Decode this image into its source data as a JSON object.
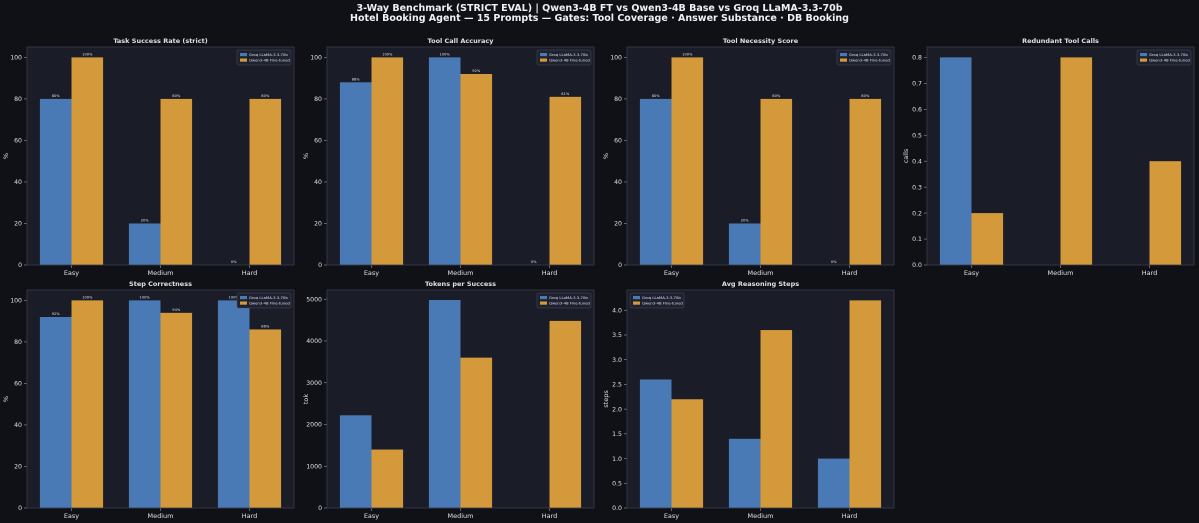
{
  "suptitle": {
    "line1": "3-Way Benchmark (STRICT EVAL)  |  Qwen3-4B FT  vs  Qwen3-4B Base  vs  Groq LLaMA-3.3-70b",
    "line2": "Hotel Booking Agent — 15 Prompts — Gates: Tool Coverage · Answer Substance · DB Booking"
  },
  "colors": {
    "figure_bg": "#0f1117",
    "panel_bg": "#1a1c27",
    "groq": "#4a7ab5",
    "qwen_ft": "#d4993a",
    "text": "#e0e0e6",
    "axis": "#3a3d4d"
  },
  "chart_data": [
    {
      "type": "bar",
      "title": "Task Success Rate (strict)",
      "ylabel": "%",
      "categories": [
        "Easy",
        "Medium",
        "Hard"
      ],
      "ylim": [
        0,
        105
      ],
      "yticks": [
        0,
        20,
        40,
        60,
        80,
        100
      ],
      "yticklabels": [
        "0",
        "20",
        "40",
        "60",
        "80",
        "100"
      ],
      "legend": "top-right",
      "series": [
        {
          "name": "Groq LLaMA-3.3-70b",
          "values": [
            80,
            20,
            0
          ],
          "labels": [
            "80%",
            "20%",
            "0%"
          ]
        },
        {
          "name": "Qwen3-4B Fine-tuned",
          "values": [
            100,
            80,
            80
          ],
          "labels": [
            "100%",
            "80%",
            "80%"
          ]
        }
      ]
    },
    {
      "type": "bar",
      "title": "Tool Call Accuracy",
      "ylabel": "%",
      "categories": [
        "Easy",
        "Medium",
        "Hard"
      ],
      "ylim": [
        0,
        105
      ],
      "yticks": [
        0,
        20,
        40,
        60,
        80,
        100
      ],
      "yticklabels": [
        "0",
        "20",
        "40",
        "60",
        "80",
        "100"
      ],
      "legend": "top-right",
      "series": [
        {
          "name": "Groq LLaMA-3.3-70b",
          "values": [
            88,
            100,
            0
          ],
          "labels": [
            "88%",
            "100%",
            "0%"
          ]
        },
        {
          "name": "Qwen3-4B Fine-tuned",
          "values": [
            100,
            92,
            81
          ],
          "labels": [
            "100%",
            "92%",
            "81%"
          ]
        }
      ]
    },
    {
      "type": "bar",
      "title": "Tool Necessity Score",
      "ylabel": "%",
      "categories": [
        "Easy",
        "Medium",
        "Hard"
      ],
      "ylim": [
        0,
        105
      ],
      "yticks": [
        0,
        20,
        40,
        60,
        80,
        100
      ],
      "yticklabels": [
        "0",
        "20",
        "40",
        "60",
        "80",
        "100"
      ],
      "legend": "top-right",
      "series": [
        {
          "name": "Groq LLaMA-3.3-70b",
          "values": [
            80,
            20,
            0
          ],
          "labels": [
            "80%",
            "20%",
            "0%"
          ]
        },
        {
          "name": "Qwen3-4B Fine-tuned",
          "values": [
            100,
            80,
            80
          ],
          "labels": [
            "100%",
            "80%",
            "80%"
          ]
        }
      ]
    },
    {
      "type": "bar",
      "title": "Redundant Tool Calls",
      "ylabel": "calls",
      "categories": [
        "Easy",
        "Medium",
        "Hard"
      ],
      "ylim": [
        0,
        0.84
      ],
      "yticks": [
        0,
        0.1,
        0.2,
        0.3,
        0.4,
        0.5,
        0.6,
        0.7,
        0.8
      ],
      "yticklabels": [
        "0.0",
        "0.1",
        "0.2",
        "0.3",
        "0.4",
        "0.5",
        "0.6",
        "0.7",
        "0.8"
      ],
      "legend": "top-right",
      "series": [
        {
          "name": "Groq LLaMA-3.3-70b",
          "values": [
            0.8,
            0,
            0
          ]
        },
        {
          "name": "Qwen3-4B Fine-tuned",
          "values": [
            0.2,
            0.8,
            0.4
          ]
        }
      ]
    },
    {
      "type": "bar",
      "title": "Step Correctness",
      "ylabel": "%",
      "categories": [
        "Easy",
        "Medium",
        "Hard"
      ],
      "ylim": [
        0,
        105
      ],
      "yticks": [
        0,
        20,
        40,
        60,
        80,
        100
      ],
      "yticklabels": [
        "0",
        "20",
        "40",
        "60",
        "80",
        "100"
      ],
      "legend": "top-right",
      "series": [
        {
          "name": "Groq LLaMA-3.3-70b",
          "values": [
            92,
            100,
            100
          ],
          "labels": [
            "92%",
            "100%",
            "100%"
          ]
        },
        {
          "name": "Qwen3-4B Fine-tuned",
          "values": [
            100,
            94,
            86
          ],
          "labels": [
            "100%",
            "94%",
            "86%"
          ]
        }
      ]
    },
    {
      "type": "bar",
      "title": "Tokens per Success",
      "ylabel": "tok",
      "categories": [
        "Easy",
        "Medium",
        "Hard"
      ],
      "ylim": [
        0,
        5220
      ],
      "yticks": [
        0,
        1000,
        2000,
        3000,
        4000,
        5000
      ],
      "yticklabels": [
        "0",
        "1000",
        "2000",
        "3000",
        "4000",
        "5000"
      ],
      "legend": "top-right",
      "series": [
        {
          "name": "Groq LLaMA-3.3-70b",
          "values": [
            2220,
            4980,
            0
          ]
        },
        {
          "name": "Qwen3-4B Fine-tuned",
          "values": [
            1400,
            3600,
            4480
          ]
        }
      ]
    },
    {
      "type": "bar",
      "title": "Avg Reasoning Steps",
      "ylabel": "steps",
      "categories": [
        "Easy",
        "Medium",
        "Hard"
      ],
      "ylim": [
        0,
        4.41
      ],
      "yticks": [
        0,
        0.5,
        1,
        1.5,
        2,
        2.5,
        3,
        3.5,
        4
      ],
      "yticklabels": [
        "0.0",
        "0.5",
        "1.0",
        "1.5",
        "2.0",
        "2.5",
        "3.0",
        "3.5",
        "4.0"
      ],
      "legend": "top-left",
      "series": [
        {
          "name": "Groq LLaMA-3.3-70b",
          "values": [
            2.6,
            1.4,
            1.0
          ]
        },
        {
          "name": "Qwen3-4B Fine-tuned",
          "values": [
            2.2,
            3.6,
            4.2
          ]
        }
      ]
    }
  ]
}
